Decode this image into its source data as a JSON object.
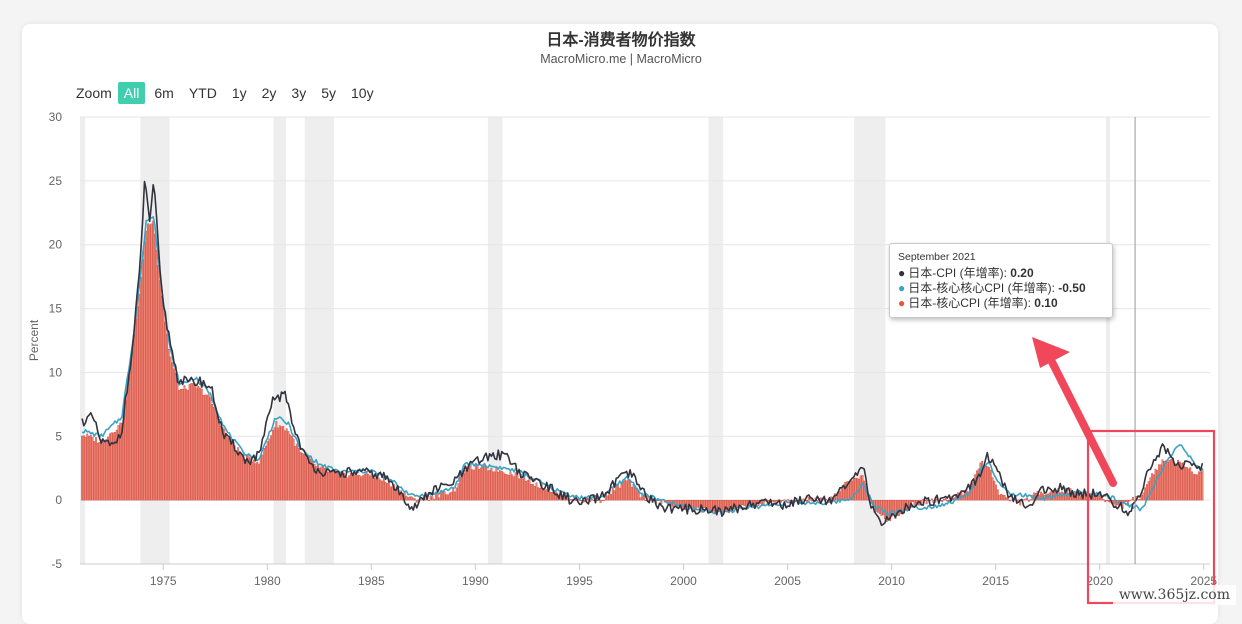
{
  "header": {
    "title": "日本-消费者物价指数",
    "subtitle": "MacroMicro.me | MacroMicro"
  },
  "range_selector": {
    "zoom_label": "Zoom",
    "buttons": [
      "All",
      "6m",
      "YTD",
      "1y",
      "2y",
      "3y",
      "5y",
      "10y"
    ],
    "active": "All"
  },
  "tooltip": {
    "date": "September 2021",
    "rows": [
      {
        "label": "日本-CPI (年增率):",
        "value": "0.20",
        "color": "#333340"
      },
      {
        "label": "日本-核心核心CPI (年增率):",
        "value": "-0.50",
        "color": "#3aa3c4"
      },
      {
        "label": "日本-核心CPI (年增率):",
        "value": "0.10",
        "color": "#e8553b"
      }
    ]
  },
  "watermark": "www.365jz.com",
  "colors": {
    "cpi": "#333340",
    "core_core": "#3aa3c4",
    "core_bar": "#f08575",
    "core_bar_edge": "#c83c30",
    "recession": "#eeeeee",
    "annotation": "#f0485a"
  },
  "chart_data": {
    "type": "bar+line",
    "xlabel": "",
    "ylabel": "Percent",
    "x_range": [
      1971,
      2025.3
    ],
    "ylim": [
      -5,
      30
    ],
    "y_ticks": [
      -5,
      0,
      5,
      10,
      15,
      20,
      25,
      30
    ],
    "x_ticks": [
      1975,
      1980,
      1985,
      1990,
      1995,
      2000,
      2005,
      2010,
      2015,
      2020,
      2025
    ],
    "grid": true,
    "recession_bands": [
      [
        1971.0,
        1971.25
      ],
      [
        1973.9,
        1975.3
      ],
      [
        1980.3,
        1980.9
      ],
      [
        1981.8,
        1983.2
      ],
      [
        1990.6,
        1991.3
      ],
      [
        2001.2,
        2001.9
      ],
      [
        2008.2,
        2009.7
      ],
      [
        2020.3,
        2020.5
      ]
    ],
    "series": [
      {
        "name": "日本-CPI (年增率)",
        "type": "line",
        "x": [
          1971,
          1971.6,
          1972.0,
          1972.6,
          1973.0,
          1973.5,
          1973.9,
          1974.1,
          1974.35,
          1974.55,
          1974.9,
          1975.2,
          1975.7,
          1976.2,
          1976.8,
          1977.3,
          1977.9,
          1978.5,
          1979.0,
          1979.6,
          1980.3,
          1980.9,
          1981.3,
          1982.0,
          1983.0,
          1984.0,
          1985.0,
          1985.7,
          1986.4,
          1987.0,
          1988.0,
          1988.8,
          1989.5,
          1990.0,
          1990.8,
          1991.5,
          1992.2,
          1993.0,
          1994.0,
          1995.0,
          1996.0,
          1997.0,
          1997.5,
          1998.2,
          1999.0,
          2000.0,
          2001.0,
          2002.0,
          2003.0,
          2004.0,
          2005.0,
          2006.0,
          2007.0,
          2007.7,
          2008.3,
          2008.7,
          2009.0,
          2009.5,
          2009.9,
          2010.5,
          2011.0,
          2012.0,
          2013.0,
          2013.6,
          2014.1,
          2014.6,
          2015.1,
          2015.6,
          2016.0,
          2016.6,
          2017.0,
          2018.0,
          2019.0,
          2020.0,
          2020.6,
          2021.0,
          2021.4,
          2021.7,
          2022.0,
          2022.4,
          2022.8,
          2023.1,
          2023.4,
          2023.9,
          2024.4,
          2024.8,
          2025.0
        ],
        "values": [
          6.1,
          6.5,
          4.6,
          4.2,
          5.5,
          11.5,
          18.5,
          25.0,
          22.0,
          24.8,
          16.5,
          13.5,
          9.5,
          9.2,
          9.3,
          8.8,
          5.0,
          4.1,
          3.0,
          3.5,
          8.0,
          8.2,
          5.5,
          2.8,
          2.0,
          2.2,
          2.1,
          1.8,
          0.5,
          -0.6,
          0.8,
          1.2,
          2.3,
          3.0,
          3.5,
          3.6,
          2.0,
          1.5,
          0.5,
          -0.3,
          0.2,
          1.8,
          2.0,
          0.3,
          -0.6,
          -0.7,
          -0.7,
          -0.9,
          -0.4,
          -0.1,
          -0.4,
          0.3,
          0.0,
          0.8,
          2.0,
          2.3,
          -0.3,
          -1.8,
          -1.5,
          -0.8,
          -0.3,
          0.0,
          0.3,
          1.0,
          1.6,
          3.5,
          2.3,
          0.3,
          -0.1,
          -0.5,
          0.6,
          1.0,
          0.5,
          0.5,
          -0.2,
          -0.5,
          -1.1,
          0.2,
          0.5,
          2.5,
          3.7,
          4.2,
          3.3,
          2.8,
          2.8,
          2.5,
          2.7
        ]
      },
      {
        "name": "日本-核心核心CPI (年增率)",
        "type": "line",
        "x": [
          1971,
          1972.0,
          1973.0,
          1973.5,
          1973.9,
          1974.2,
          1974.55,
          1974.9,
          1975.3,
          1975.8,
          1976.5,
          1977.2,
          1978.0,
          1978.8,
          1979.6,
          1980.4,
          1981.0,
          1981.6,
          1982.5,
          1983.5,
          1985.0,
          1986.0,
          1987.0,
          1988.0,
          1989.0,
          1989.5,
          1990.0,
          1991.0,
          1992.0,
          1993.0,
          1994.0,
          1995.0,
          1996.0,
          1997.3,
          1998.0,
          1999.0,
          2000.0,
          2001.0,
          2002.0,
          2003.0,
          2004.0,
          2005.0,
          2006.0,
          2007.0,
          2008.0,
          2008.6,
          2009.2,
          2009.8,
          2010.5,
          2011.0,
          2012.0,
          2013.0,
          2013.8,
          2014.3,
          2014.7,
          2015.2,
          2015.7,
          2016.3,
          2017.0,
          2018.0,
          2019.0,
          2020.0,
          2020.6,
          2021.0,
          2021.7,
          2022.0,
          2022.5,
          2023.0,
          2023.5,
          2023.9,
          2024.3,
          2024.6,
          2025.0
        ],
        "values": [
          5.5,
          5.0,
          6.5,
          12.0,
          17.5,
          22.0,
          22.2,
          17.0,
          12.0,
          9.0,
          9.6,
          8.5,
          5.5,
          3.8,
          3.2,
          6.5,
          6.0,
          4.0,
          2.8,
          2.2,
          2.3,
          1.5,
          0.3,
          0.5,
          1.0,
          2.8,
          2.8,
          2.6,
          2.3,
          1.5,
          0.7,
          0.2,
          0.2,
          1.8,
          0.5,
          -0.1,
          -0.5,
          -0.8,
          -0.9,
          -0.6,
          -0.4,
          -0.2,
          -0.2,
          -0.2,
          0.1,
          1.2,
          -0.5,
          -1.0,
          -0.8,
          -0.6,
          -0.5,
          -0.1,
          0.6,
          2.5,
          2.8,
          1.2,
          0.4,
          0.4,
          0.1,
          0.3,
          0.6,
          0.4,
          0.2,
          -0.2,
          -0.5,
          -0.8,
          0.8,
          2.3,
          3.8,
          4.2,
          3.5,
          2.6,
          2.3
        ]
      },
      {
        "name": "日本-核心CPI (年增率)",
        "type": "bar",
        "x": [
          1971,
          1972.0,
          1973.0,
          1973.5,
          1973.9,
          1974.2,
          1974.55,
          1974.9,
          1975.3,
          1975.8,
          1976.5,
          1977.2,
          1978.0,
          1978.8,
          1979.6,
          1980.4,
          1981.0,
          1981.6,
          1982.5,
          1983.5,
          1985.0,
          1986.0,
          1987.0,
          1988.0,
          1989.0,
          1989.5,
          1990.0,
          1991.0,
          1992.0,
          1993.0,
          1994.0,
          1995.0,
          1996.0,
          1997.3,
          1998.0,
          1999.0,
          2000.0,
          2001.0,
          2002.0,
          2003.0,
          2004.0,
          2005.0,
          2006.0,
          2007.0,
          2008.0,
          2008.6,
          2009.2,
          2009.8,
          2010.5,
          2011.0,
          2012.0,
          2013.0,
          2013.8,
          2014.3,
          2014.7,
          2015.2,
          2015.7,
          2016.3,
          2017.0,
          2018.0,
          2019.0,
          2020.0,
          2020.6,
          2021.0,
          2021.7,
          2022.0,
          2022.5,
          2023.0,
          2023.5,
          2023.9,
          2024.3,
          2024.6,
          2025.0
        ],
        "values": [
          5.2,
          4.6,
          6.0,
          11.5,
          17.0,
          21.5,
          21.8,
          16.5,
          11.5,
          8.6,
          9.0,
          8.1,
          5.2,
          3.5,
          3.0,
          6.0,
          5.5,
          3.7,
          2.5,
          2.0,
          2.0,
          1.2,
          0.0,
          0.3,
          0.8,
          2.5,
          2.6,
          2.4,
          2.0,
          1.2,
          0.5,
          0.0,
          0.0,
          1.6,
          0.3,
          -0.2,
          -0.6,
          -0.8,
          -0.9,
          -0.5,
          -0.2,
          -0.1,
          0.0,
          0.0,
          1.5,
          2.0,
          -1.0,
          -1.5,
          -1.0,
          -0.3,
          0.0,
          0.2,
          1.0,
          3.0,
          2.5,
          0.5,
          0.0,
          -0.2,
          0.5,
          0.8,
          0.6,
          0.3,
          -0.3,
          -0.5,
          0.1,
          0.3,
          2.0,
          3.0,
          3.2,
          2.8,
          2.5,
          2.2,
          2.3
        ]
      }
    ],
    "highlight": {
      "type": "crosshair",
      "x": 2021.7
    }
  }
}
